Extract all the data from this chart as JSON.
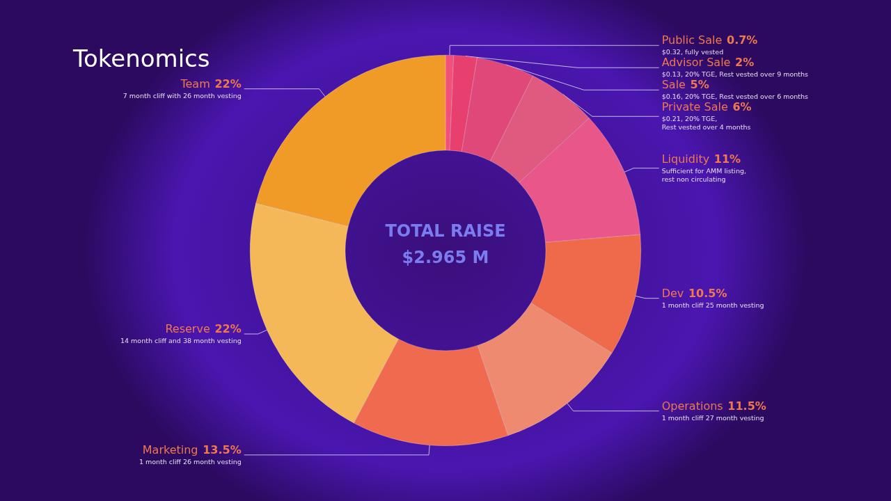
{
  "chart_data": {
    "type": "donut",
    "title": "Tokenomics",
    "subtitle": "TOTAL RAISE\n$2.965 M",
    "categories": [
      "Public Sale",
      "Advisor Sale",
      "Sale",
      "Private Sale",
      "Liquidity",
      "Dev",
      "Operations",
      "Marketing",
      "Reserve",
      "Team"
    ],
    "values": [
      0.7,
      2,
      5,
      6,
      11,
      10.5,
      11.5,
      13.5,
      22,
      22
    ],
    "value_labels": [
      "0.7%",
      "2%",
      "5%",
      "6%",
      "11%",
      "10.5%",
      "11.5%",
      "13.5%",
      "22%",
      "22%"
    ],
    "colors": [
      "#f0507a",
      "#e8406e",
      "#e0487a",
      "#e05a80",
      "#e8568a",
      "#ee6a4a",
      "#ee8a70",
      "#f06a50",
      "#f4b858",
      "#f09a28"
    ],
    "annotations": [
      "$0.32, fully vested",
      "$0.13, 20% TGE, Rest vested over 9 months",
      "$0.16, 20% TGE, Rest vested over 6 months",
      "$0.21, 20% TGE,\nRest vested over 4 months",
      "Sufficient for AMM listing,\nrest non circulating",
      "1 month cliff 25 month vesting",
      "1 month cliff 27 month vesting",
      "1 month cliff 26 month vesting",
      "14 month cliff and 38 month vesting",
      "7 month cliff with 26 month vesting"
    ],
    "legend": false
  }
}
